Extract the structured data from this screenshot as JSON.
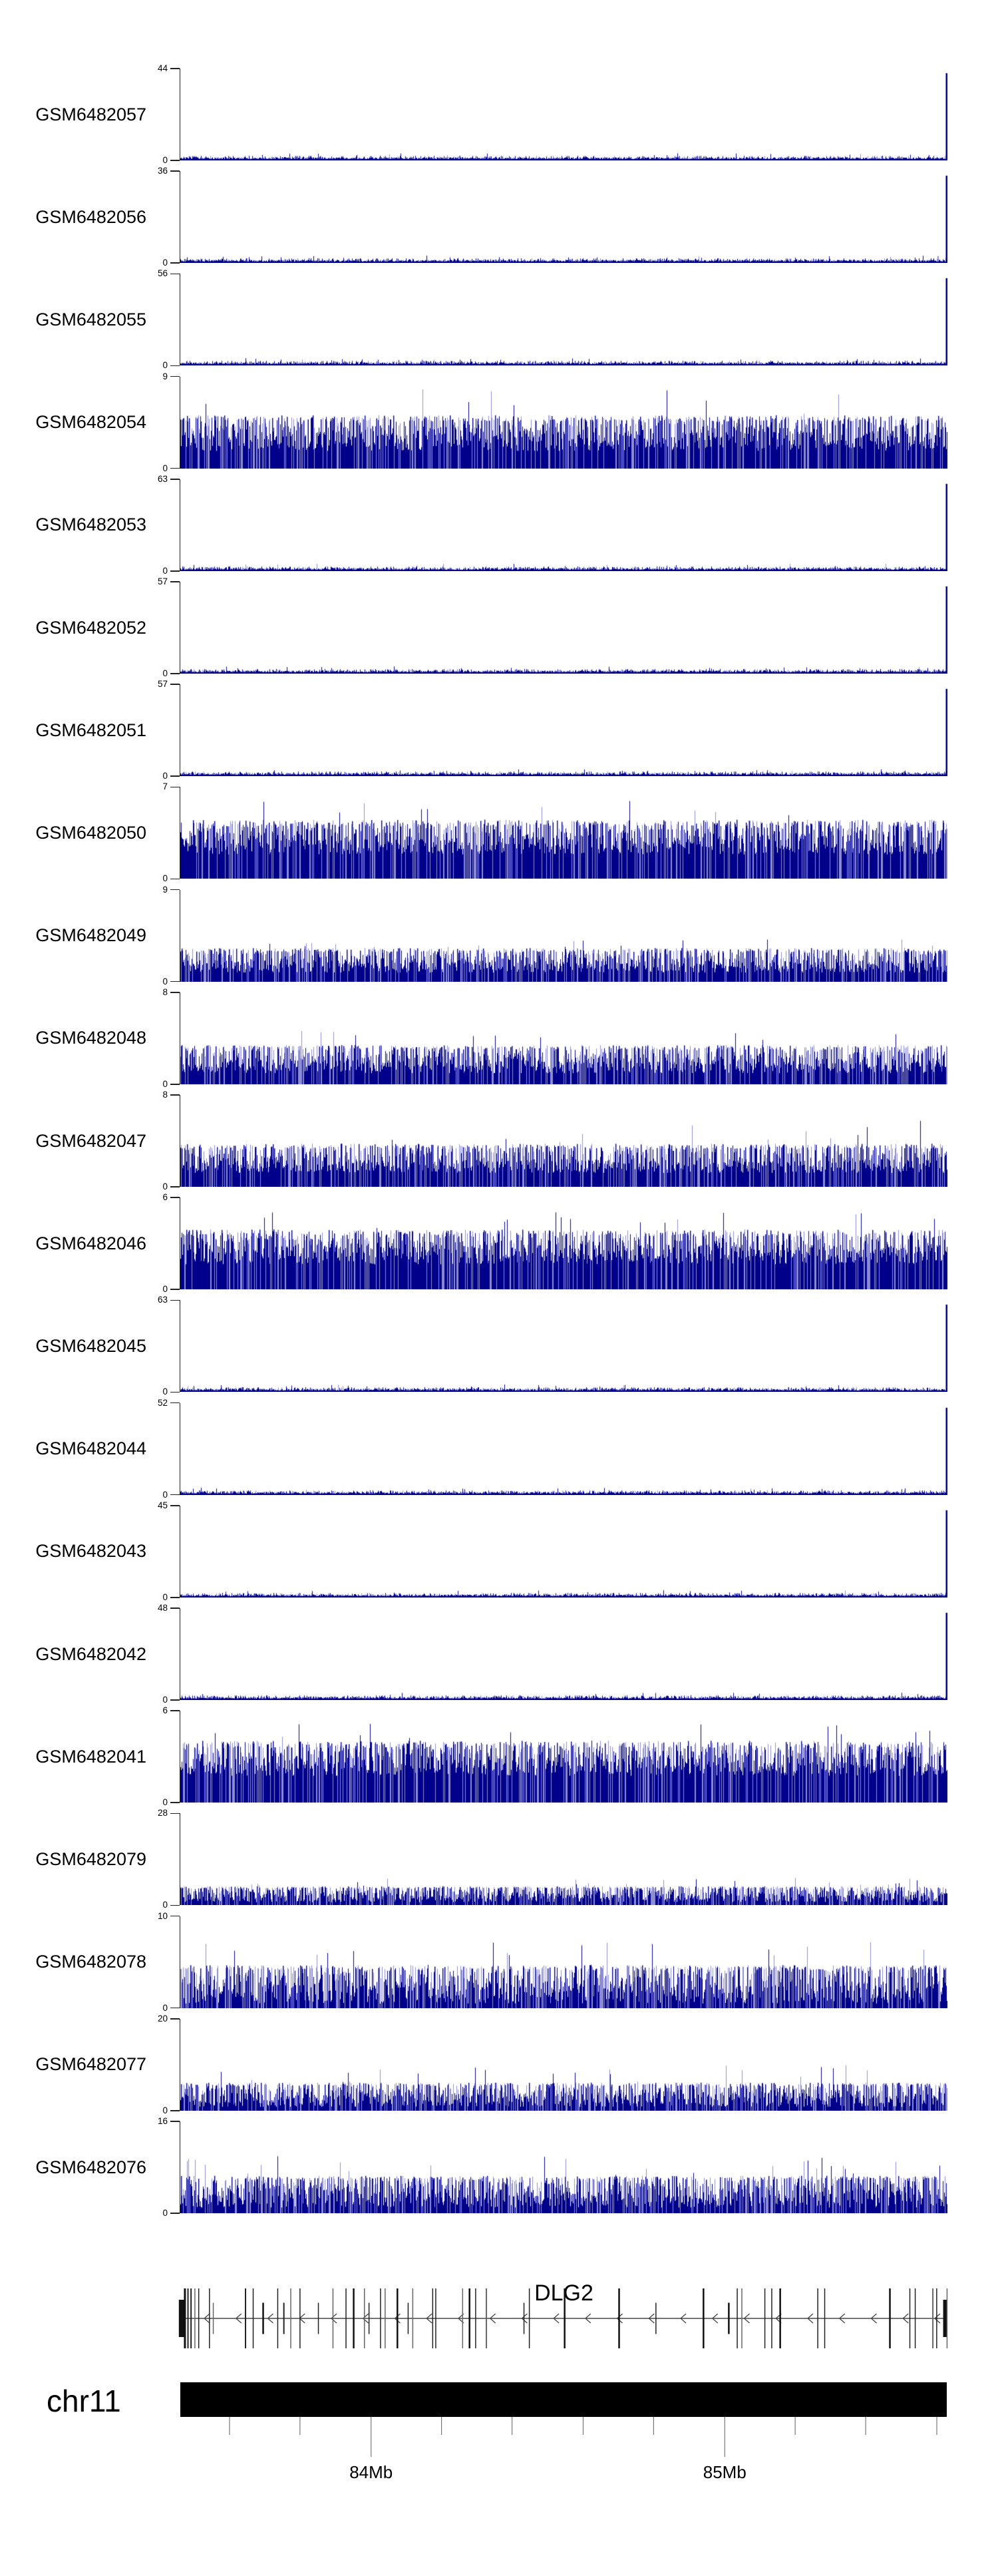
{
  "chart_data": {
    "type": "area",
    "chart_kind": "genome-coverage-tracks",
    "colors": {
      "signal": "#00008b",
      "signal_light": "#8d8dd2",
      "axis": "#222222",
      "ideogram": "#000000",
      "tick": "#777777"
    },
    "tracks": [
      {
        "label": "GSM6482057",
        "ymin": 0,
        "ymax": 44,
        "seed": 1,
        "profile": {
          "type": "sparse",
          "spike": 0.95
        }
      },
      {
        "label": "GSM6482056",
        "ymin": 0,
        "ymax": 36,
        "seed": 2,
        "profile": {
          "type": "sparse",
          "spike": 0.95
        }
      },
      {
        "label": "GSM6482055",
        "ymin": 0,
        "ymax": 56,
        "seed": 3,
        "profile": {
          "type": "sparse",
          "spike": 0.95
        }
      },
      {
        "label": "GSM6482054",
        "ymin": 0,
        "ymax": 9,
        "seed": 4,
        "profile": {
          "type": "dense",
          "base": 0.19,
          "mid": 0.42,
          "spike": 0.57,
          "tall": 0.92,
          "pTall": 0.012
        }
      },
      {
        "label": "GSM6482053",
        "ymin": 0,
        "ymax": 63,
        "seed": 5,
        "profile": {
          "type": "sparse",
          "spike": 0.95
        }
      },
      {
        "label": "GSM6482052",
        "ymin": 0,
        "ymax": 57,
        "seed": 6,
        "profile": {
          "type": "sparse",
          "spike": 0.95
        }
      },
      {
        "label": "GSM6482051",
        "ymin": 0,
        "ymax": 57,
        "seed": 7,
        "profile": {
          "type": "sparse",
          "spike": 0.95
        }
      },
      {
        "label": "GSM6482050",
        "ymin": 0,
        "ymax": 7,
        "seed": 8,
        "profile": {
          "type": "dense",
          "base": 0.26,
          "mid": 0.48,
          "spike": 0.63,
          "tall": 0.9,
          "pTall": 0.01
        }
      },
      {
        "label": "GSM6482049",
        "ymin": 0,
        "ymax": 9,
        "seed": 9,
        "profile": {
          "type": "dense",
          "base": 0.1,
          "mid": 0.24,
          "spike": 0.36,
          "tall": 0.48,
          "pTall": 0.02
        }
      },
      {
        "label": "GSM6482048",
        "ymin": 0,
        "ymax": 8,
        "seed": 10,
        "profile": {
          "type": "dense",
          "base": 0.12,
          "mid": 0.28,
          "spike": 0.42,
          "tall": 0.6,
          "pTall": 0.012
        }
      },
      {
        "label": "GSM6482047",
        "ymin": 0,
        "ymax": 8,
        "seed": 11,
        "profile": {
          "type": "dense",
          "base": 0.15,
          "mid": 0.3,
          "spike": 0.46,
          "tall": 0.72,
          "pTall": 0.01
        }
      },
      {
        "label": "GSM6482046",
        "ymin": 0,
        "ymax": 6,
        "seed": 12,
        "profile": {
          "type": "dense",
          "base": 0.27,
          "mid": 0.48,
          "spike": 0.64,
          "tall": 0.85,
          "pTall": 0.015
        }
      },
      {
        "label": "GSM6482045",
        "ymin": 0,
        "ymax": 63,
        "seed": 13,
        "profile": {
          "type": "sparse",
          "spike": 0.95
        }
      },
      {
        "label": "GSM6482044",
        "ymin": 0,
        "ymax": 52,
        "seed": 14,
        "profile": {
          "type": "sparse",
          "spike": 0.95
        }
      },
      {
        "label": "GSM6482043",
        "ymin": 0,
        "ymax": 45,
        "seed": 15,
        "profile": {
          "type": "sparse",
          "spike": 0.95
        }
      },
      {
        "label": "GSM6482042",
        "ymin": 0,
        "ymax": 48,
        "seed": 16,
        "profile": {
          "type": "sparse",
          "spike": 0.95
        }
      },
      {
        "label": "GSM6482041",
        "ymin": 0,
        "ymax": 6,
        "seed": 17,
        "profile": {
          "type": "dense",
          "base": 0.29,
          "mid": 0.5,
          "spike": 0.66,
          "tall": 0.88,
          "pTall": 0.015
        }
      },
      {
        "label": "GSM6482079",
        "ymin": 0,
        "ymax": 28,
        "seed": 18,
        "profile": {
          "type": "dense",
          "base": 0.03,
          "mid": 0.13,
          "spike": 0.2,
          "tall": 0.3,
          "pTall": 0.02
        }
      },
      {
        "label": "GSM6482078",
        "ymin": 0,
        "ymax": 10,
        "seed": 19,
        "profile": {
          "type": "dense",
          "base": 0.05,
          "mid": 0.28,
          "spike": 0.46,
          "tall": 0.72,
          "pTall": 0.02
        }
      },
      {
        "label": "GSM6482077",
        "ymin": 0,
        "ymax": 20,
        "seed": 20,
        "profile": {
          "type": "dense",
          "base": 0.04,
          "mid": 0.19,
          "spike": 0.3,
          "tall": 0.5,
          "pTall": 0.02
        }
      },
      {
        "label": "GSM6482076",
        "ymin": 0,
        "ymax": 16,
        "seed": 21,
        "profile": {
          "type": "dense",
          "base": 0.06,
          "mid": 0.26,
          "spike": 0.4,
          "tall": 0.62,
          "pTall": 0.02
        }
      }
    ],
    "gene_track": {
      "name": "DLG2",
      "strand": "-",
      "arrows": {
        "count": 24,
        "start_frac": 0.033,
        "step_frac": 0.0414
      },
      "exons": [
        [
          0.002,
          56,
          9
        ],
        [
          0.006,
          90,
          3
        ],
        [
          0.01,
          90,
          2
        ],
        [
          0.014,
          90,
          2
        ],
        [
          0.019,
          90,
          1.5
        ],
        [
          0.024,
          90,
          1.5
        ],
        [
          0.038,
          90,
          1.5
        ],
        [
          0.043,
          47,
          1.5
        ],
        [
          0.085,
          90,
          2
        ],
        [
          0.095,
          90,
          1.5
        ],
        [
          0.108,
          47,
          2.5
        ],
        [
          0.127,
          90,
          1.5
        ],
        [
          0.135,
          47,
          2
        ],
        [
          0.144,
          90,
          1.5
        ],
        [
          0.156,
          90,
          1.5
        ],
        [
          0.18,
          47,
          1.5
        ],
        [
          0.199,
          90,
          1.5
        ],
        [
          0.216,
          90,
          1.5
        ],
        [
          0.226,
          90,
          2.5
        ],
        [
          0.24,
          90,
          1.5
        ],
        [
          0.246,
          47,
          1.5
        ],
        [
          0.261,
          90,
          1.5
        ],
        [
          0.267,
          90,
          1.5
        ],
        [
          0.283,
          90,
          2.5
        ],
        [
          0.297,
          47,
          1.5
        ],
        [
          0.303,
          90,
          1.5
        ],
        [
          0.329,
          90,
          1.5
        ],
        [
          0.333,
          90,
          1.5
        ],
        [
          0.368,
          90,
          1.5
        ],
        [
          0.377,
          90,
          2.5
        ],
        [
          0.385,
          90,
          1.5
        ],
        [
          0.399,
          90,
          2
        ],
        [
          0.448,
          47,
          1.5
        ],
        [
          0.455,
          90,
          1.5
        ],
        [
          0.501,
          90,
          2.5
        ],
        [
          0.572,
          90,
          2.5
        ],
        [
          0.62,
          47,
          1.5
        ],
        [
          0.682,
          90,
          2.5
        ],
        [
          0.715,
          47,
          2.5
        ],
        [
          0.726,
          90,
          1.5
        ],
        [
          0.732,
          90,
          1.5
        ],
        [
          0.762,
          90,
          1.5
        ],
        [
          0.771,
          90,
          1.5
        ],
        [
          0.782,
          90,
          2.5
        ],
        [
          0.831,
          90,
          1.5
        ],
        [
          0.84,
          90,
          1.5
        ],
        [
          0.925,
          90,
          2.5
        ],
        [
          0.951,
          90,
          1.5
        ],
        [
          0.958,
          90,
          1.5
        ],
        [
          0.981,
          90,
          2
        ],
        [
          0.986,
          90,
          1.5
        ],
        [
          0.997,
          56,
          6
        ],
        [
          0.9995,
          90,
          1.5
        ]
      ]
    },
    "chromosome_axis": {
      "label": "chr11",
      "ticks": [
        {
          "f": 0.0642
        },
        {
          "f": 0.1561
        },
        {
          "f": 0.2489,
          "label": "84Mb"
        },
        {
          "f": 0.3408
        },
        {
          "f": 0.4328
        },
        {
          "f": 0.5256
        },
        {
          "f": 0.6175
        },
        {
          "f": 0.7103,
          "label": "85Mb"
        },
        {
          "f": 0.8022
        },
        {
          "f": 0.8942
        },
        {
          "f": 0.987
        }
      ]
    }
  }
}
